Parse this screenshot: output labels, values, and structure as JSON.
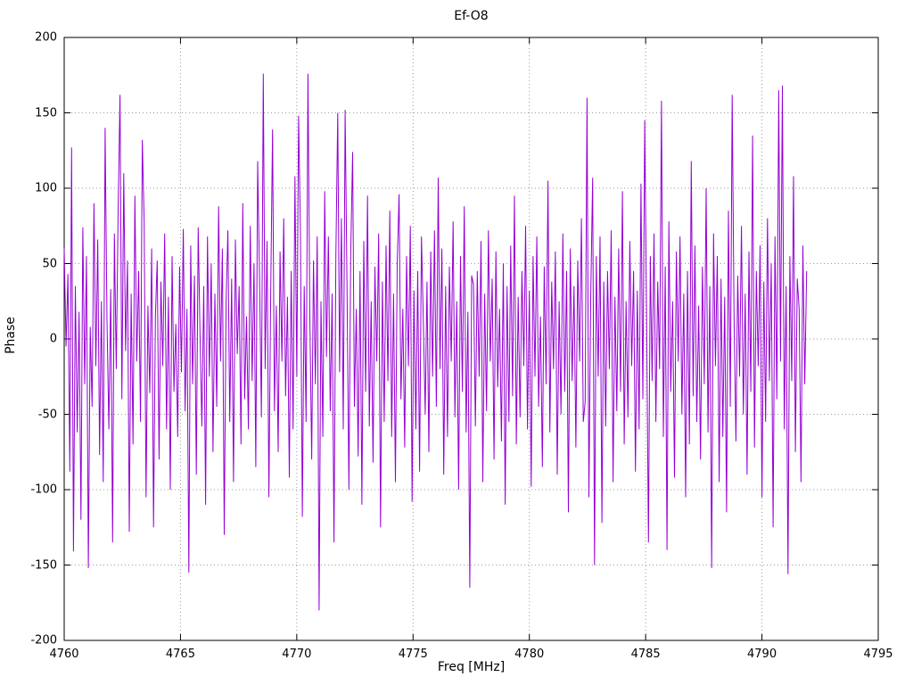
{
  "chart_data": {
    "type": "line",
    "title": "Ef-O8",
    "xlabel": "Freq [MHz]",
    "ylabel": "Phase",
    "xlim": [
      4760,
      4795
    ],
    "ylim": [
      -200,
      200
    ],
    "xticks": [
      4760,
      4765,
      4770,
      4775,
      4780,
      4785,
      4790,
      4795
    ],
    "yticks": [
      -200,
      -150,
      -100,
      -50,
      0,
      50,
      100,
      150,
      200
    ],
    "grid": true,
    "legend": "none",
    "line_color": "#9400d3",
    "grid_color": "#9a9a9a",
    "series": [
      {
        "name": "phase",
        "x_start": 4760.0,
        "x_step": 0.08,
        "values": [
          60,
          -5,
          43,
          -88,
          127,
          -141,
          35,
          -62,
          18,
          -120,
          74,
          -30,
          55,
          -152,
          8,
          -45,
          90,
          -18,
          66,
          -77,
          25,
          -95,
          140,
          12,
          -60,
          33,
          -135,
          70,
          -20,
          85,
          162,
          -40,
          110,
          -8,
          52,
          -128,
          30,
          -70,
          95,
          -15,
          45,
          -55,
          132,
          78,
          -105,
          22,
          -36,
          60,
          -125,
          15,
          52,
          -80,
          38,
          -18,
          70,
          -60,
          28,
          -100,
          55,
          -35,
          10,
          -65,
          48,
          -22,
          73,
          -48,
          20,
          -155,
          62,
          -30,
          42,
          -90,
          74,
          5,
          -58,
          35,
          -110,
          68,
          -25,
          50,
          -75,
          30,
          -45,
          88,
          -15,
          60,
          -130,
          25,
          72,
          -55,
          40,
          -95,
          66,
          -10,
          35,
          -70,
          90,
          -40,
          15,
          -60,
          75,
          -28,
          50,
          -85,
          118,
          40,
          -52,
          176,
          -20,
          65,
          -105,
          30,
          139,
          -48,
          22,
          -75,
          58,
          -15,
          80,
          -38,
          28,
          -92,
          45,
          -60,
          108,
          -25,
          148,
          70,
          -118,
          35,
          -55,
          176,
          15,
          -80,
          52,
          -30,
          68,
          -180,
          25,
          -65,
          98,
          -12,
          68,
          -48,
          30,
          -135,
          55,
          150,
          -22,
          80,
          -60,
          152,
          35,
          -100,
          58,
          124,
          -45,
          20,
          -78,
          45,
          -110,
          65,
          -35,
          95,
          -58,
          25,
          -82,
          48,
          -15,
          70,
          -125,
          38,
          -55,
          62,
          -28,
          85,
          -65,
          30,
          -95,
          50,
          96,
          -40,
          20,
          -72,
          55,
          -18,
          75,
          -108,
          32,
          -60,
          45,
          -88,
          68,
          12,
          -50,
          38,
          -75,
          58,
          -25,
          72,
          -45,
          107,
          -20,
          60,
          -90,
          35,
          -65,
          48,
          -15,
          78,
          -52,
          25,
          -100,
          55,
          -35,
          88,
          -62,
          18,
          -165,
          42,
          36,
          -58,
          45,
          -25,
          65,
          -95,
          30,
          -48,
          72,
          -15,
          40,
          -80,
          58,
          -32,
          20,
          -68,
          50,
          -110,
          35,
          -55,
          62,
          -38,
          95,
          -70,
          28,
          -52,
          45,
          -18,
          75,
          -60,
          32,
          -98,
          55,
          -25,
          68,
          -45,
          15,
          -85,
          48,
          -30,
          105,
          -62,
          38,
          -20,
          58,
          -90,
          25,
          -50,
          70,
          -35,
          45,
          -115,
          60,
          -28,
          35,
          -72,
          52,
          -15,
          80,
          -55,
          -42,
          160,
          -105,
          30,
          107,
          -150,
          55,
          -25,
          68,
          -122,
          38,
          -58,
          45,
          -20,
          72,
          -95,
          28,
          -48,
          60,
          -35,
          98,
          -70,
          25,
          -52,
          65,
          -18,
          45,
          -88,
          32,
          -60,
          103,
          -40,
          145,
          15,
          -135,
          55,
          -28,
          70,
          -55,
          38,
          -20,
          158,
          -65,
          48,
          -140,
          78,
          -35,
          25,
          -92,
          58,
          -15,
          68,
          -50,
          30,
          -105,
          45,
          -70,
          118,
          -38,
          62,
          -55,
          22,
          -80,
          48,
          -30,
          100,
          -62,
          35,
          -152,
          70,
          -18,
          55,
          -95,
          40,
          -65,
          28,
          -115,
          85,
          -45,
          162,
          15,
          -68,
          42,
          -25,
          75,
          -50,
          30,
          -90,
          58,
          -35,
          135,
          -72,
          45,
          -18,
          62,
          -105,
          38,
          -55,
          80,
          -28,
          50,
          -125,
          68,
          -40,
          165,
          -15,
          168,
          -60,
          35,
          -156,
          55,
          -28,
          108,
          -75,
          40,
          20,
          -95,
          62,
          -30,
          45
        ]
      }
    ]
  }
}
